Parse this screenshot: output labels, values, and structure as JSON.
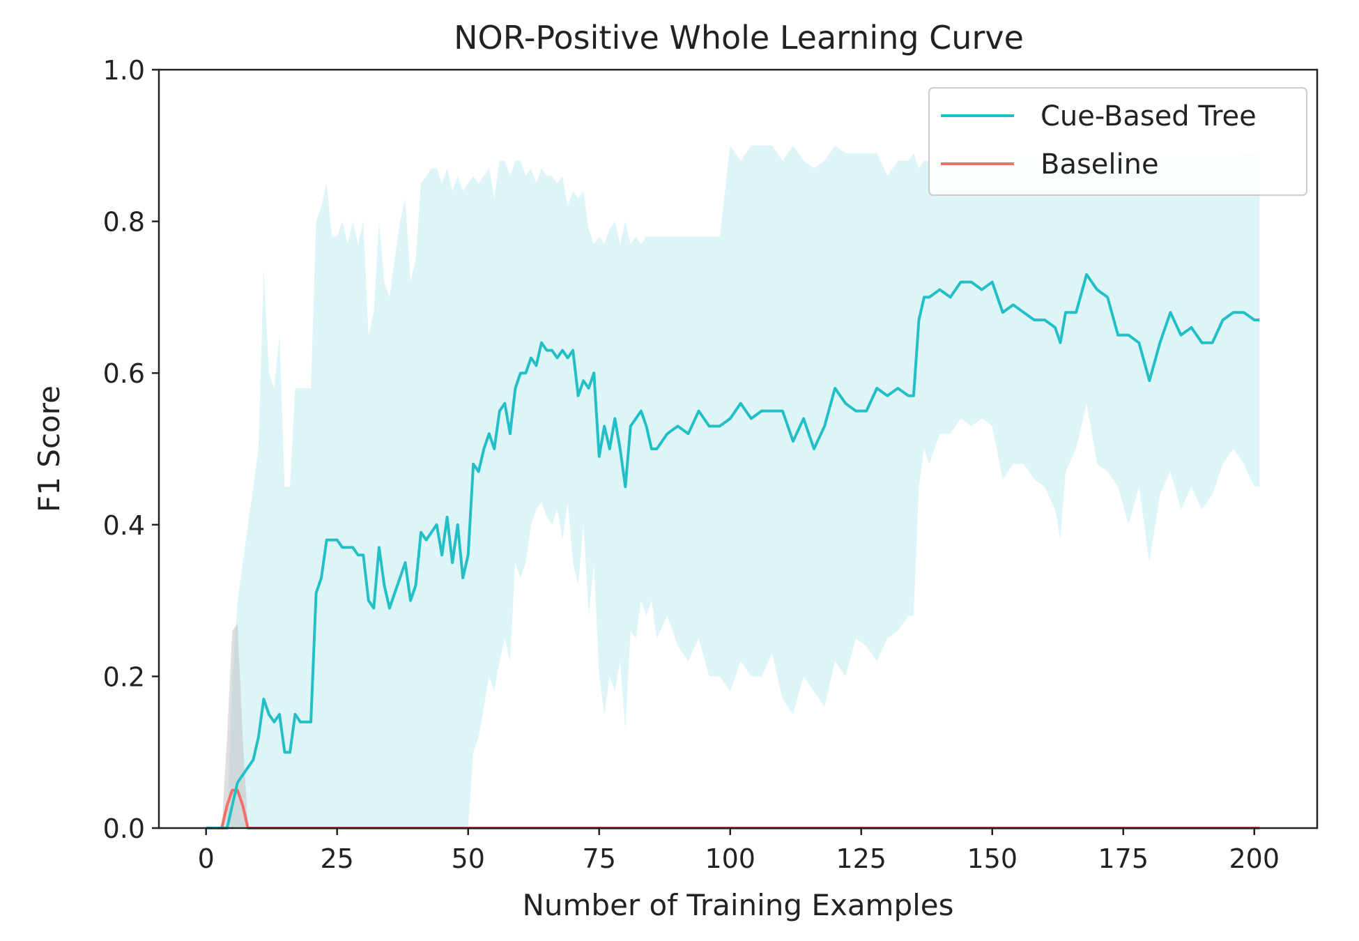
{
  "chart_data": {
    "type": "line",
    "title": "NOR-Positive Whole Learning Curve",
    "xlabel": "Number of Training Examples",
    "ylabel": "F1 Score",
    "xlim": [
      -9,
      212
    ],
    "ylim": [
      0,
      1.0
    ],
    "xticks": [
      0,
      25,
      50,
      75,
      100,
      125,
      150,
      175,
      200
    ],
    "yticks": [
      0.0,
      0.2,
      0.4,
      0.6,
      0.8,
      1.0
    ],
    "ytick_labels": [
      "0.0",
      "0.2",
      "0.4",
      "0.6",
      "0.8",
      "1.0"
    ],
    "grid": false,
    "legend_position": "top-right",
    "series": [
      {
        "name": "Cue-Based Tree",
        "color": "#22bfc6",
        "band_color": "#22bfc6",
        "x": [
          0,
          1,
          2,
          3,
          4,
          5,
          6,
          7,
          8,
          9,
          10,
          11,
          12,
          13,
          14,
          15,
          16,
          17,
          18,
          19,
          20,
          21,
          22,
          23,
          24,
          25,
          26,
          27,
          28,
          29,
          30,
          31,
          32,
          33,
          34,
          35,
          36,
          37,
          38,
          39,
          40,
          41,
          42,
          43,
          44,
          45,
          46,
          47,
          48,
          49,
          50,
          51,
          52,
          53,
          54,
          55,
          56,
          57,
          58,
          59,
          60,
          61,
          62,
          63,
          64,
          65,
          66,
          67,
          68,
          69,
          70,
          71,
          72,
          73,
          74,
          75,
          76,
          77,
          78,
          79,
          80,
          81,
          82,
          83,
          84,
          85,
          86,
          88,
          90,
          92,
          94,
          96,
          98,
          100,
          102,
          104,
          106,
          108,
          110,
          112,
          114,
          116,
          118,
          120,
          122,
          124,
          126,
          128,
          130,
          132,
          134,
          135,
          136,
          137,
          138,
          140,
          142,
          144,
          146,
          148,
          150,
          152,
          154,
          156,
          158,
          160,
          162,
          163,
          164,
          166,
          168,
          170,
          172,
          174,
          176,
          178,
          180,
          182,
          184,
          186,
          188,
          190,
          192,
          194,
          196,
          198,
          200,
          201
        ],
        "values": [
          0.0,
          0.0,
          0.0,
          0.0,
          0.0,
          0.03,
          0.06,
          0.07,
          0.08,
          0.09,
          0.12,
          0.17,
          0.15,
          0.14,
          0.15,
          0.1,
          0.1,
          0.15,
          0.14,
          0.14,
          0.14,
          0.31,
          0.33,
          0.38,
          0.38,
          0.38,
          0.37,
          0.37,
          0.37,
          0.36,
          0.36,
          0.3,
          0.29,
          0.37,
          0.32,
          0.29,
          0.31,
          0.33,
          0.35,
          0.3,
          0.32,
          0.39,
          0.38,
          0.39,
          0.4,
          0.36,
          0.41,
          0.35,
          0.4,
          0.33,
          0.36,
          0.48,
          0.47,
          0.5,
          0.52,
          0.5,
          0.55,
          0.56,
          0.52,
          0.58,
          0.6,
          0.6,
          0.62,
          0.61,
          0.64,
          0.63,
          0.63,
          0.62,
          0.63,
          0.62,
          0.63,
          0.57,
          0.59,
          0.58,
          0.6,
          0.49,
          0.53,
          0.5,
          0.54,
          0.5,
          0.45,
          0.53,
          0.54,
          0.55,
          0.53,
          0.5,
          0.5,
          0.52,
          0.53,
          0.52,
          0.55,
          0.53,
          0.53,
          0.54,
          0.56,
          0.54,
          0.55,
          0.55,
          0.55,
          0.51,
          0.54,
          0.5,
          0.53,
          0.58,
          0.56,
          0.55,
          0.55,
          0.58,
          0.57,
          0.58,
          0.57,
          0.57,
          0.67,
          0.7,
          0.7,
          0.71,
          0.7,
          0.72,
          0.72,
          0.71,
          0.72,
          0.68,
          0.69,
          0.68,
          0.67,
          0.67,
          0.66,
          0.64,
          0.68,
          0.68,
          0.73,
          0.71,
          0.7,
          0.65,
          0.65,
          0.64,
          0.59,
          0.64,
          0.68,
          0.65,
          0.66,
          0.64,
          0.64,
          0.67,
          0.68,
          0.68,
          0.67,
          0.67
        ],
        "lower": [
          0.0,
          0.0,
          0.0,
          0.0,
          0.0,
          0.0,
          0.0,
          0.0,
          0.0,
          0.0,
          0.0,
          0.0,
          0.0,
          0.0,
          0.0,
          0.0,
          0.0,
          0.0,
          0.0,
          0.0,
          0.0,
          0.0,
          0.0,
          0.0,
          0.0,
          0.0,
          0.0,
          0.0,
          0.0,
          0.0,
          0.0,
          0.0,
          0.0,
          0.0,
          0.0,
          0.0,
          0.0,
          0.0,
          0.0,
          0.0,
          0.0,
          0.0,
          0.0,
          0.0,
          0.0,
          0.0,
          0.0,
          0.0,
          0.0,
          0.0,
          0.0,
          0.1,
          0.12,
          0.16,
          0.2,
          0.18,
          0.22,
          0.25,
          0.22,
          0.35,
          0.33,
          0.35,
          0.4,
          0.42,
          0.43,
          0.41,
          0.4,
          0.42,
          0.38,
          0.43,
          0.35,
          0.32,
          0.4,
          0.28,
          0.35,
          0.2,
          0.15,
          0.2,
          0.18,
          0.22,
          0.13,
          0.26,
          0.25,
          0.3,
          0.28,
          0.3,
          0.25,
          0.28,
          0.24,
          0.22,
          0.25,
          0.2,
          0.2,
          0.18,
          0.22,
          0.2,
          0.2,
          0.23,
          0.17,
          0.15,
          0.2,
          0.18,
          0.16,
          0.22,
          0.2,
          0.25,
          0.24,
          0.22,
          0.25,
          0.26,
          0.28,
          0.28,
          0.45,
          0.5,
          0.48,
          0.52,
          0.52,
          0.54,
          0.53,
          0.54,
          0.53,
          0.46,
          0.48,
          0.48,
          0.46,
          0.45,
          0.42,
          0.38,
          0.47,
          0.5,
          0.56,
          0.48,
          0.47,
          0.45,
          0.4,
          0.45,
          0.35,
          0.44,
          0.47,
          0.42,
          0.45,
          0.42,
          0.44,
          0.48,
          0.5,
          0.48,
          0.45,
          0.45
        ],
        "upper": [
          0.0,
          0.0,
          0.0,
          0.0,
          0.0,
          0.2,
          0.3,
          0.35,
          0.4,
          0.45,
          0.5,
          0.74,
          0.6,
          0.58,
          0.65,
          0.45,
          0.45,
          0.58,
          0.58,
          0.58,
          0.58,
          0.8,
          0.82,
          0.85,
          0.78,
          0.78,
          0.8,
          0.77,
          0.8,
          0.77,
          0.8,
          0.65,
          0.68,
          0.8,
          0.72,
          0.7,
          0.75,
          0.8,
          0.83,
          0.72,
          0.75,
          0.85,
          0.86,
          0.87,
          0.87,
          0.85,
          0.87,
          0.84,
          0.86,
          0.84,
          0.85,
          0.86,
          0.85,
          0.86,
          0.87,
          0.83,
          0.88,
          0.88,
          0.86,
          0.88,
          0.88,
          0.86,
          0.87,
          0.85,
          0.87,
          0.86,
          0.86,
          0.85,
          0.86,
          0.82,
          0.84,
          0.83,
          0.84,
          0.79,
          0.77,
          0.78,
          0.77,
          0.79,
          0.8,
          0.77,
          0.8,
          0.77,
          0.78,
          0.77,
          0.78,
          0.78,
          0.78,
          0.78,
          0.78,
          0.78,
          0.78,
          0.78,
          0.78,
          0.9,
          0.88,
          0.9,
          0.9,
          0.9,
          0.88,
          0.9,
          0.88,
          0.87,
          0.88,
          0.9,
          0.89,
          0.89,
          0.89,
          0.89,
          0.86,
          0.88,
          0.88,
          0.89,
          0.87,
          0.88,
          0.88,
          0.88,
          0.88,
          0.88,
          0.88,
          0.88,
          0.88,
          0.88,
          0.88,
          0.88,
          0.88,
          0.88,
          0.88,
          0.88,
          0.88,
          0.88,
          0.88,
          0.88,
          0.88,
          0.88,
          0.88,
          0.88,
          0.88,
          0.88,
          0.88,
          0.88,
          0.88,
          0.88,
          0.88,
          0.88,
          0.88,
          0.89,
          0.89,
          0.89
        ]
      },
      {
        "name": "Baseline",
        "color": "#f07067",
        "band_color": "#b8b8b8",
        "x": [
          0,
          1,
          2,
          3,
          4,
          5,
          6,
          7,
          8,
          9,
          10,
          20,
          50,
          100,
          150,
          200,
          201
        ],
        "values": [
          0.0,
          0.0,
          0.0,
          0.0,
          0.03,
          0.05,
          0.05,
          0.03,
          0.0,
          0.0,
          0.0,
          0.0,
          0.0,
          0.0,
          0.0,
          0.0,
          0.0
        ],
        "lower": [
          0.0,
          0.0,
          0.0,
          0.0,
          0.0,
          0.0,
          0.0,
          0.0,
          0.0,
          0.0,
          0.0,
          0.0,
          0.0,
          0.0,
          0.0,
          0.0,
          0.0
        ],
        "upper": [
          0.0,
          0.0,
          0.0,
          0.0,
          0.12,
          0.26,
          0.27,
          0.12,
          0.0,
          0.0,
          0.0,
          0.0,
          0.0,
          0.0,
          0.0,
          0.0,
          0.0
        ]
      }
    ]
  }
}
